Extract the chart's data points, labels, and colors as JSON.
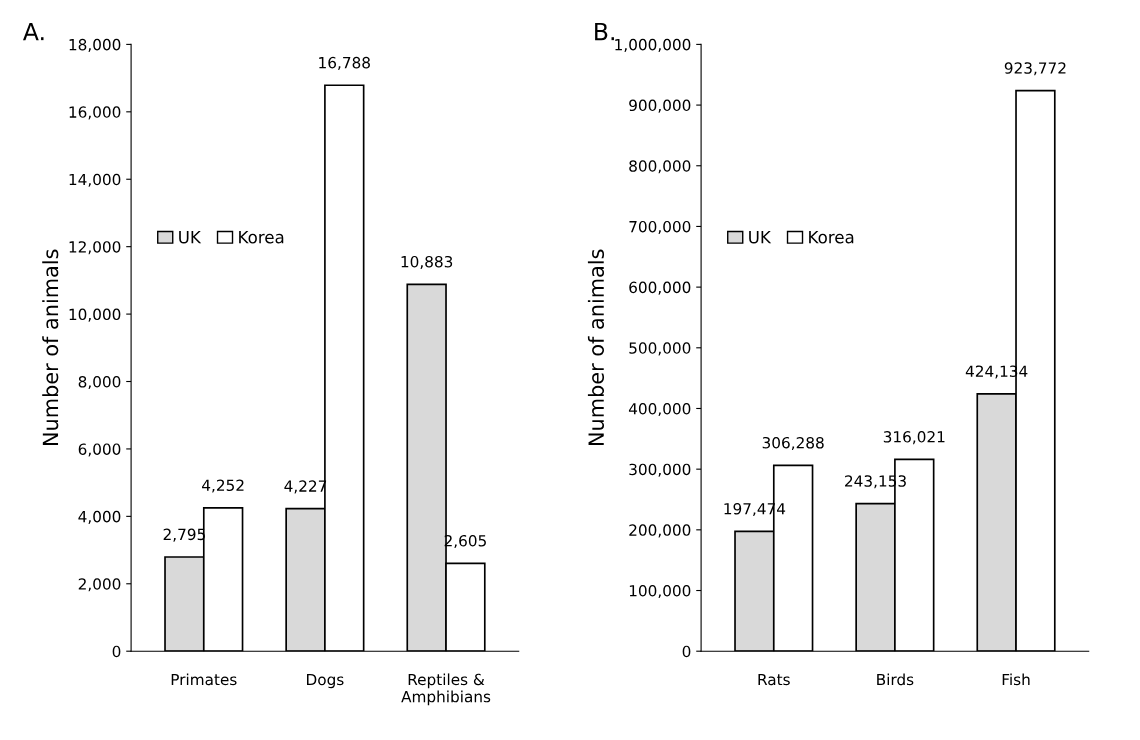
{
  "chart_data": [
    {
      "type": "bar",
      "title": "A.",
      "ylabel": "Number of animals",
      "categories": [
        "Primates",
        "Dogs",
        "Reptiles &\nAmphibians"
      ],
      "series": [
        {
          "name": "UK",
          "color": "#d9d9d9",
          "values": [
            2795,
            4227,
            10883
          ],
          "value_labels": [
            "2,795",
            "4,227",
            "10,883"
          ]
        },
        {
          "name": "Korea",
          "color": "#ffffff",
          "values": [
            4252,
            16788,
            2605
          ],
          "value_labels": [
            "4,252",
            "16,788",
            "2,605"
          ]
        }
      ],
      "ylim": [
        0,
        18000
      ],
      "yticks": [
        0,
        {
          "value": 2000,
          "label": "2,000"
        },
        {
          "value": 4000,
          "label": "4,000"
        },
        {
          "value": 6000,
          "label": "6,000"
        },
        {
          "value": 8000,
          "label": "8,000"
        },
        {
          "value": 10000,
          "label": "10,000"
        },
        {
          "value": 12000,
          "label": "12,000"
        },
        {
          "value": 14000,
          "label": "14,000"
        },
        {
          "value": 16000,
          "label": "16,000"
        },
        {
          "value": 18000,
          "label": "18,000"
        }
      ],
      "grid": false,
      "legend": "left"
    },
    {
      "type": "bar",
      "title": "B.",
      "ylabel": "Number of animals",
      "categories": [
        "Rats",
        "Birds",
        "Fish"
      ],
      "series": [
        {
          "name": "UK",
          "color": "#d9d9d9",
          "values": [
            197474,
            243153,
            424134
          ],
          "value_labels": [
            "197,474",
            "243,153",
            "424,134"
          ]
        },
        {
          "name": "Korea",
          "color": "#ffffff",
          "values": [
            306288,
            316021,
            923772
          ],
          "value_labels": [
            "306,288",
            "316,021",
            "923,772"
          ]
        }
      ],
      "ylim": [
        0,
        1000000
      ],
      "yticks": [
        0,
        {
          "value": 100000,
          "label": "100,000"
        },
        {
          "value": 200000,
          "label": "200,000"
        },
        {
          "value": 300000,
          "label": "300,000"
        },
        {
          "value": 400000,
          "label": "400,000"
        },
        {
          "value": 500000,
          "label": "500,000"
        },
        {
          "value": 600000,
          "label": "600,000"
        },
        {
          "value": 700000,
          "label": "700,000"
        },
        {
          "value": 800000,
          "label": "800,000"
        },
        {
          "value": 900000,
          "label": "900,000"
        },
        {
          "value": 1000000,
          "label": "1,000,000"
        }
      ],
      "grid": false,
      "legend": "left"
    }
  ]
}
